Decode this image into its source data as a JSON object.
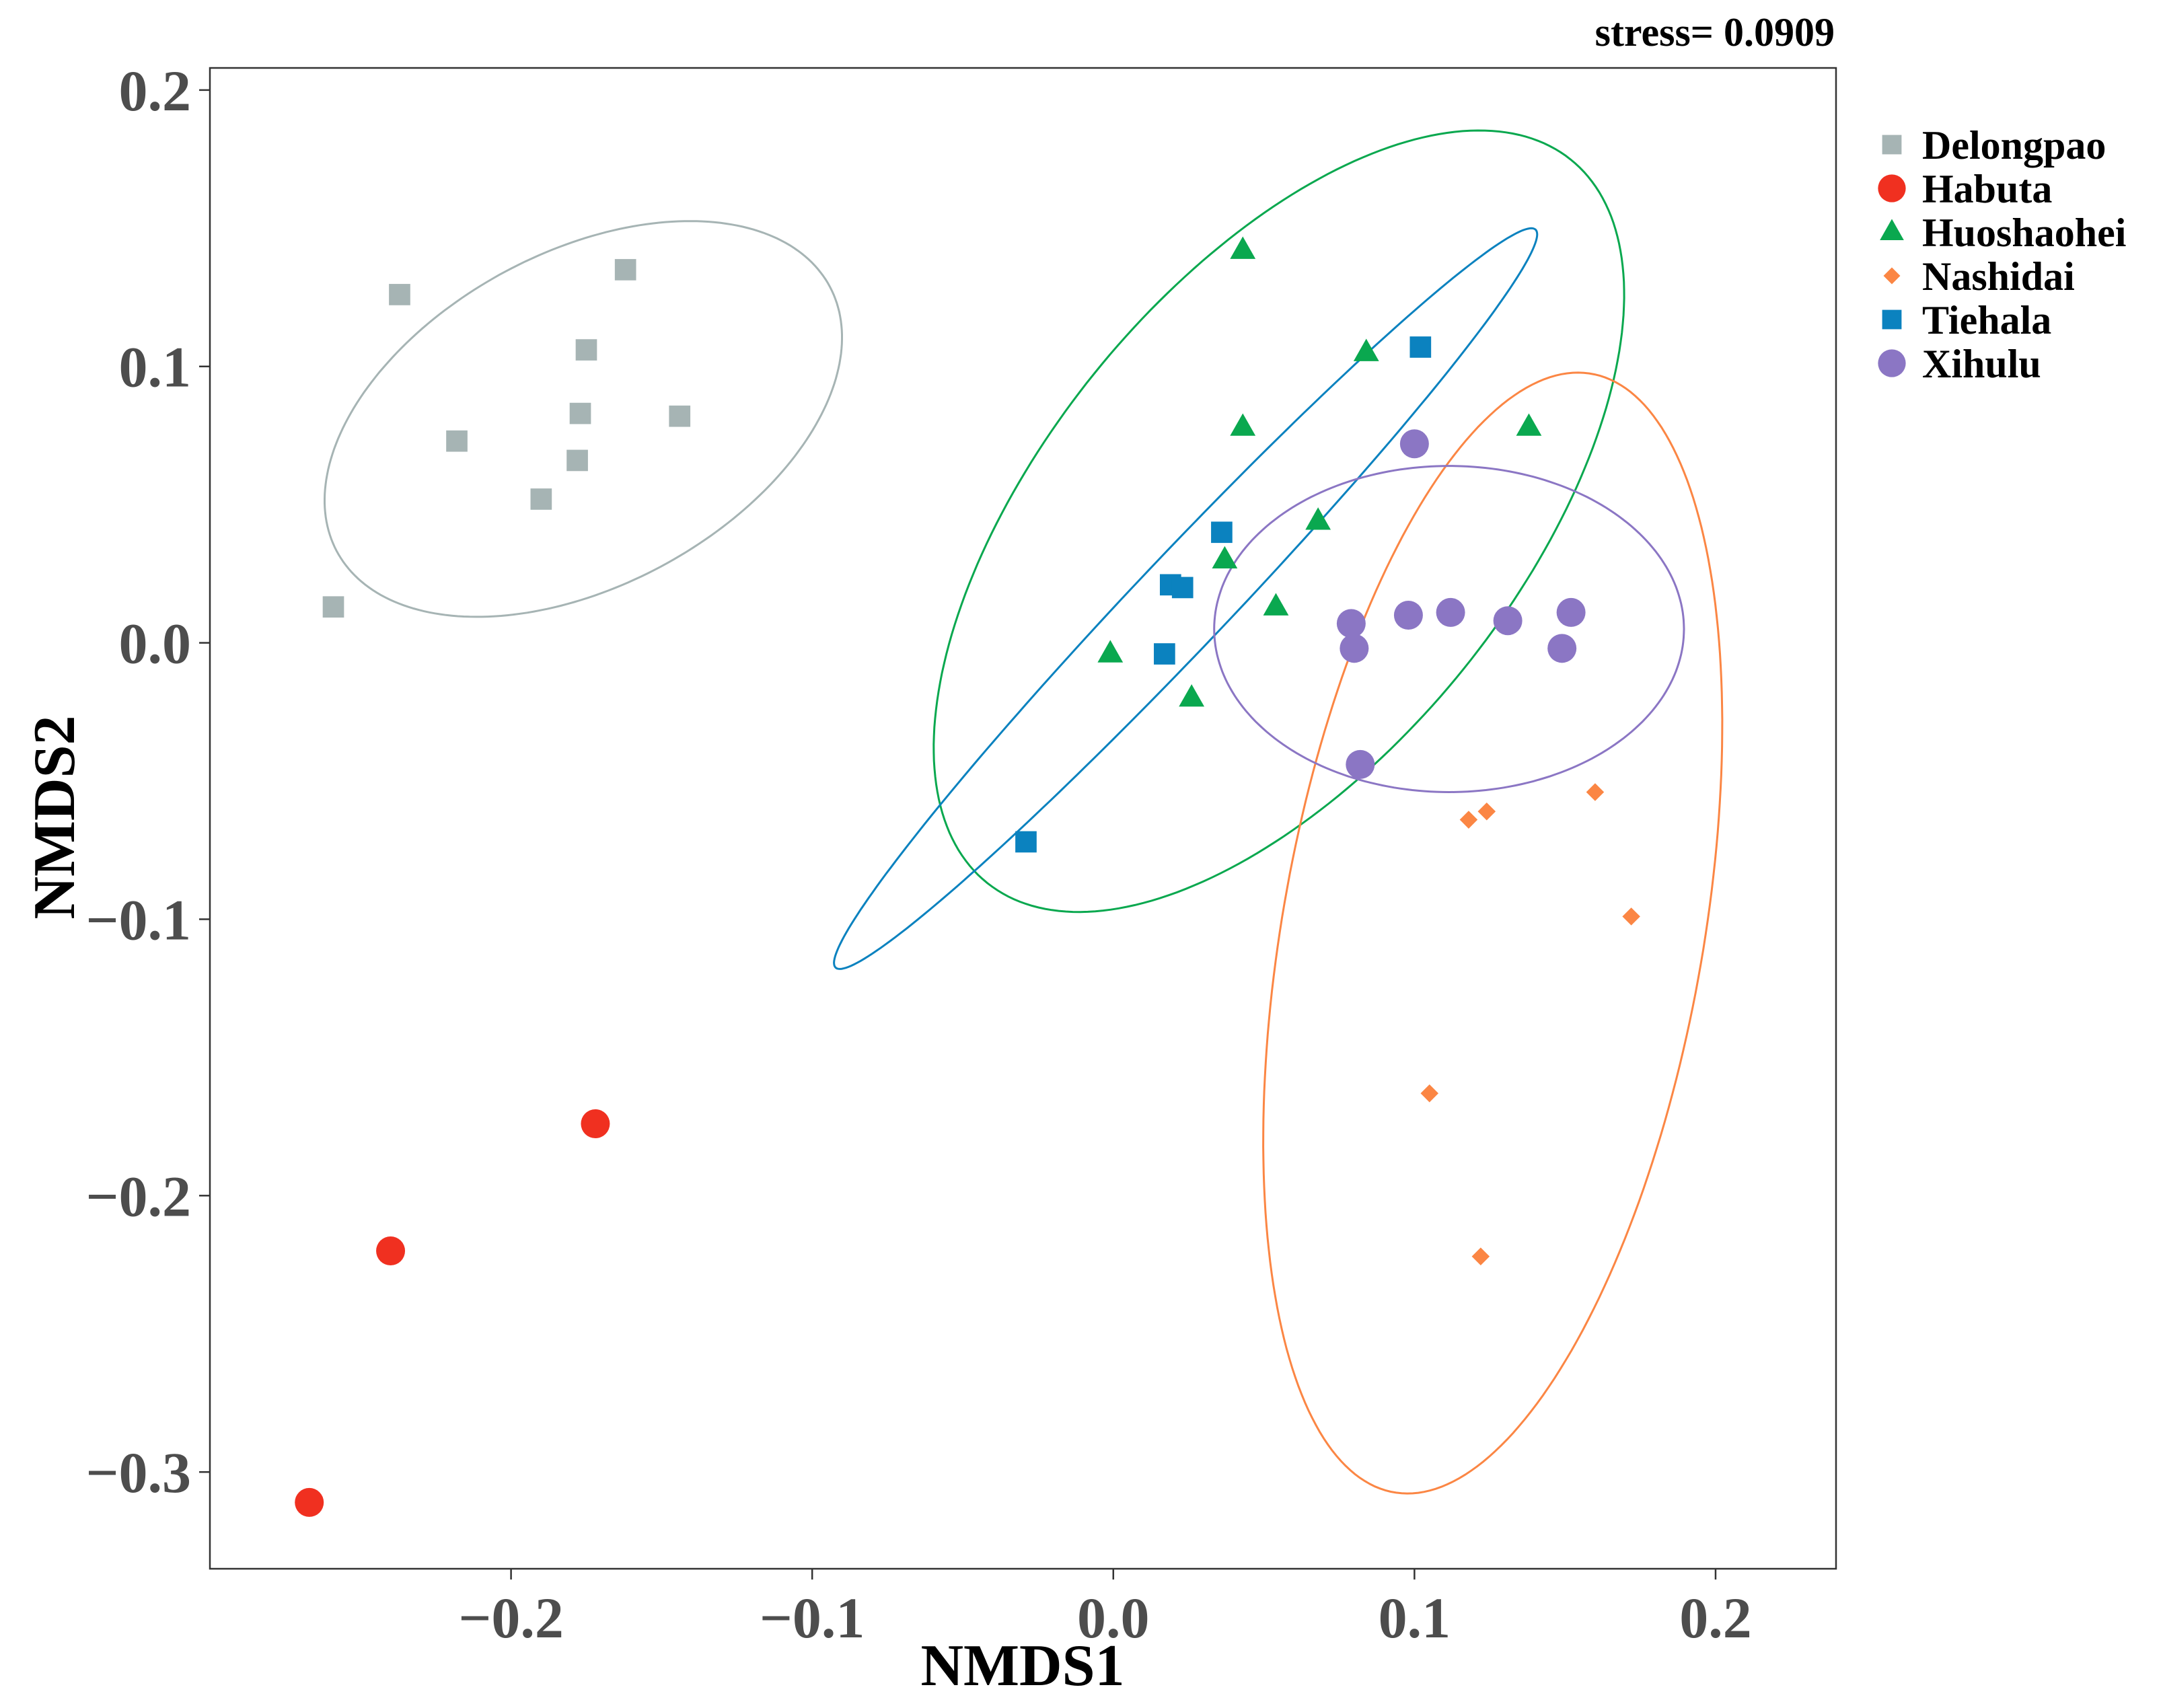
{
  "chart_data": {
    "type": "scatter",
    "title": "stress= 0.0909",
    "xlabel": "NMDS1",
    "ylabel": "NMDS2",
    "xlim": [
      -0.3,
      0.24
    ],
    "ylim": [
      -0.335,
      0.208
    ],
    "x_ticks": [
      {
        "value": -0.2,
        "label": "−0.2"
      },
      {
        "value": -0.1,
        "label": "−0.1"
      },
      {
        "value": 0.0,
        "label": "0.0"
      },
      {
        "value": 0.1,
        "label": "0.1"
      },
      {
        "value": 0.2,
        "label": "0.2"
      }
    ],
    "y_ticks": [
      {
        "value": 0.2,
        "label": "0.2"
      },
      {
        "value": 0.1,
        "label": "0.1"
      },
      {
        "value": 0.0,
        "label": "0.0"
      },
      {
        "value": -0.1,
        "label": "−0.1"
      },
      {
        "value": -0.2,
        "label": "−0.2"
      },
      {
        "value": -0.3,
        "label": "−0.3"
      }
    ],
    "grid": false,
    "legend_position": "right",
    "series": [
      {
        "name": "Delongpao",
        "color": "#a6b4b4",
        "marker": "square",
        "points": [
          [
            -0.237,
            0.126
          ],
          [
            -0.162,
            0.135
          ],
          [
            -0.175,
            0.106
          ],
          [
            -0.218,
            0.073
          ],
          [
            -0.177,
            0.083
          ],
          [
            -0.144,
            0.082
          ],
          [
            -0.178,
            0.066
          ],
          [
            -0.19,
            0.052
          ],
          [
            -0.259,
            0.013
          ]
        ],
        "ellipse": {
          "cx": -0.176,
          "cy": 0.081,
          "rx": 0.095,
          "ry": 0.059,
          "angle": 33
        }
      },
      {
        "name": "Habuta",
        "color": "#f03020",
        "marker": "circle",
        "points": [
          [
            -0.172,
            -0.174
          ],
          [
            -0.24,
            -0.22
          ],
          [
            -0.267,
            -0.311
          ]
        ],
        "ellipse": null
      },
      {
        "name": "Huoshaohei",
        "color": "#0aa84f",
        "marker": "triangle",
        "points": [
          [
            0.043,
            0.142
          ],
          [
            0.084,
            0.105
          ],
          [
            0.043,
            0.078
          ],
          [
            0.138,
            0.078
          ],
          [
            0.068,
            0.044
          ],
          [
            0.037,
            0.03
          ],
          [
            0.054,
            0.013
          ],
          [
            -0.001,
            -0.004
          ],
          [
            0.026,
            -0.02
          ]
        ],
        "ellipse": {
          "cx": 0.055,
          "cy": 0.044,
          "rx": 0.163,
          "ry": 0.081,
          "angle": 55
        }
      },
      {
        "name": "Nashidai",
        "color": "#fb8644",
        "marker": "diamond",
        "points": [
          [
            0.16,
            -0.054
          ],
          [
            0.124,
            -0.061
          ],
          [
            0.118,
            -0.064
          ],
          [
            0.172,
            -0.099
          ],
          [
            0.105,
            -0.163
          ],
          [
            0.122,
            -0.222
          ]
        ],
        "ellipse": {
          "cx": 0.126,
          "cy": -0.105,
          "rx": 0.205,
          "ry": 0.07,
          "angle": 81
        }
      },
      {
        "name": "Tiehala",
        "color": "#0b82bf",
        "marker": "square",
        "points": [
          [
            0.102,
            0.107
          ],
          [
            0.036,
            0.04
          ],
          [
            0.019,
            0.021
          ],
          [
            0.023,
            0.02
          ],
          [
            0.017,
            -0.004
          ],
          [
            -0.029,
            -0.072
          ]
        ],
        "ellipse": {
          "cx": 0.024,
          "cy": 0.016,
          "rx": 0.177,
          "ry": 0.016,
          "angle": 49
        }
      },
      {
        "name": "Xihulu",
        "color": "#8b76c4",
        "marker": "circle",
        "points": [
          [
            0.1,
            0.072
          ],
          [
            0.079,
            0.007
          ],
          [
            0.098,
            0.01
          ],
          [
            0.112,
            0.011
          ],
          [
            0.131,
            0.008
          ],
          [
            0.152,
            0.011
          ],
          [
            0.08,
            -0.002
          ],
          [
            0.149,
            -0.002
          ],
          [
            0.082,
            -0.044
          ]
        ],
        "ellipse": {
          "cx": 0.1115,
          "cy": 0.005,
          "rx": 0.078,
          "ry": 0.059,
          "angle": 0
        }
      }
    ]
  }
}
